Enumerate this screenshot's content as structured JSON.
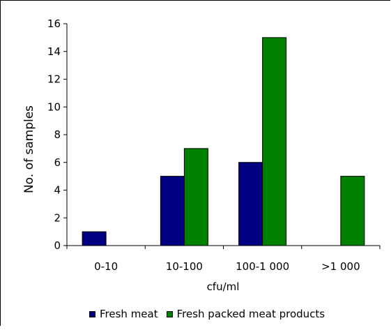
{
  "chart_data": {
    "type": "bar",
    "title": "",
    "xlabel": "cfu/ml",
    "ylabel": "No. of samples",
    "categories": [
      "0-10",
      "10-100",
      "100-1 000",
      ">1 000"
    ],
    "series": [
      {
        "name": "Fresh meat",
        "values": [
          1,
          5,
          6,
          0
        ],
        "color": "#000080"
      },
      {
        "name": "Fresh packed meat products",
        "values": [
          0,
          7,
          15,
          5
        ],
        "color": "#008000"
      }
    ],
    "ylim": [
      0,
      16
    ],
    "yticks": [
      "0",
      "2",
      "4",
      "6",
      "8",
      "10",
      "12",
      "14",
      "16"
    ],
    "grid": false,
    "legend_position": "bottom"
  }
}
